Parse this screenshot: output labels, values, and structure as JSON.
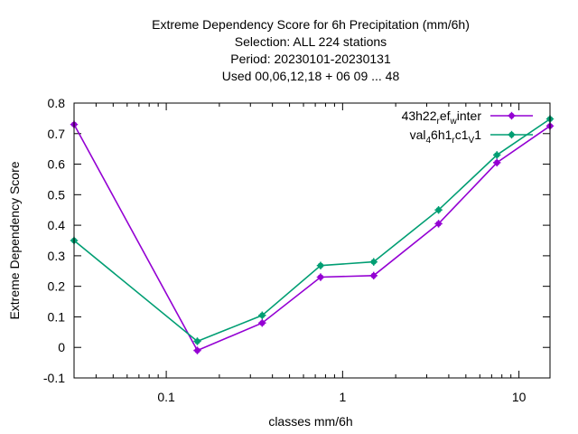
{
  "chart_data": {
    "type": "line",
    "title_lines": [
      "Extreme Dependency Score  for 6h Precipitation (mm/6h)",
      "Selection: ALL    224 stations",
      "Period: 20230101-20230131",
      "Used  00,06,12,18 + 06 09 ... 48"
    ],
    "xlabel": "classes mm/6h",
    "ylabel": "Extreme Dependency Score",
    "x_scale": "log",
    "xlim": [
      0.03,
      15
    ],
    "ylim": [
      -0.1,
      0.8
    ],
    "x_ticks": [
      {
        "value": 0.1,
        "label": "0.1"
      },
      {
        "value": 1,
        "label": "1"
      },
      {
        "value": 10,
        "label": "10"
      }
    ],
    "y_ticks": [
      {
        "value": -0.1,
        "label": "-0.1"
      },
      {
        "value": 0,
        "label": "0"
      },
      {
        "value": 0.1,
        "label": "0.1"
      },
      {
        "value": 0.2,
        "label": "0.2"
      },
      {
        "value": 0.3,
        "label": "0.3"
      },
      {
        "value": 0.4,
        "label": "0.4"
      },
      {
        "value": 0.5,
        "label": "0.5"
      },
      {
        "value": 0.6,
        "label": "0.6"
      },
      {
        "value": 0.7,
        "label": "0.7"
      },
      {
        "value": 0.8,
        "label": "0.8"
      }
    ],
    "grid": false,
    "legend_position": "top-right",
    "x": [
      0.03,
      0.15,
      0.35,
      0.75,
      1.5,
      3.5,
      7.5,
      15
    ],
    "series": [
      {
        "legend": {
          "base": "43h22",
          "sub1": "r",
          "mid": "ef",
          "sub2": "w",
          "tail": "inter"
        },
        "color": "#9400d3",
        "values": [
          0.73,
          -0.01,
          0.08,
          0.23,
          0.235,
          0.405,
          0.605,
          0.725
        ]
      },
      {
        "legend": {
          "base": "val",
          "sub1": "4",
          "mid": "6h1",
          "sub2": "r",
          "mid2": "c1",
          "sub3": "V",
          "tail": "1"
        },
        "color": "#009e73",
        "values": [
          0.35,
          0.02,
          0.105,
          0.268,
          0.28,
          0.45,
          0.63,
          0.748
        ]
      }
    ]
  }
}
